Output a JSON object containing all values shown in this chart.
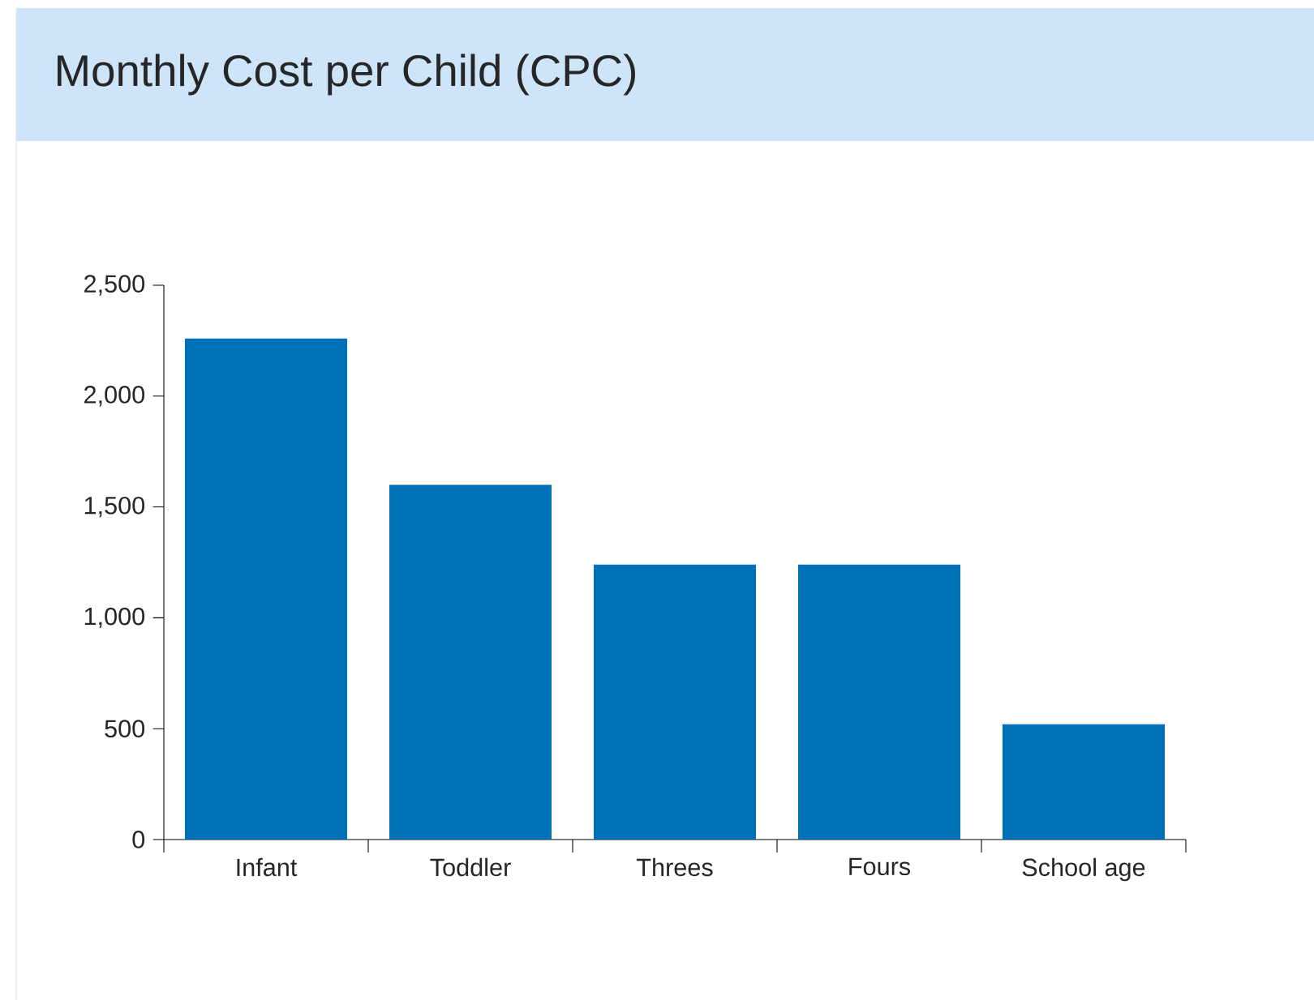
{
  "chart_data": {
    "type": "bar",
    "title": "Monthly Cost per Child (CPC)",
    "categories": [
      "Infant",
      "Toddler",
      "Threes",
      "Fours",
      "School age"
    ],
    "values": [
      2260,
      1600,
      1240,
      1240,
      520
    ],
    "color": "#0070b8",
    "ylim": [
      0,
      2500
    ],
    "yticks": [
      0,
      500,
      {
        "value": 1000,
        "label": "1,000"
      },
      {
        "value": 1500,
        "label": "1,500"
      },
      {
        "value": 2000,
        "label": "2,000"
      },
      {
        "value": 2500,
        "label": "2,500"
      }
    ]
  }
}
